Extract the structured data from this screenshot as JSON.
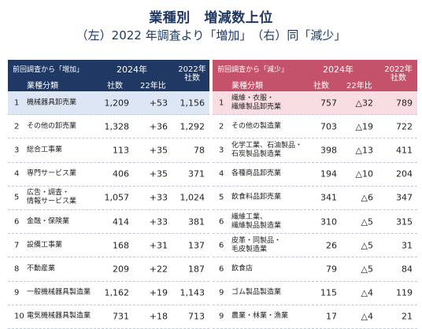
{
  "title": "業種別　増減数上位",
  "subtitle": "（左）2022 年調査より「増加」　（右）同「減少」",
  "left": {
    "caption": "前回調査から「増加」",
    "year_label": "2024年",
    "prev_label": "2022年 社数",
    "col_category": "業種分類",
    "col_count": "社数",
    "col_diff": "22年比",
    "rows": [
      {
        "rank": "1",
        "name": "機械器具卸売業",
        "count": "1,209",
        "diff": "+53",
        "prev": "1,156"
      },
      {
        "rank": "2",
        "name": "その他の卸売業",
        "count": "1,328",
        "diff": "+36",
        "prev": "1,292"
      },
      {
        "rank": "3",
        "name": "総合工事業",
        "count": "113",
        "diff": "+35",
        "prev": "78"
      },
      {
        "rank": "4",
        "name": "専門サービス業",
        "count": "406",
        "diff": "+35",
        "prev": "371"
      },
      {
        "rank": "5",
        "name": "広告・調査・\n情報サービス業",
        "count": "1,057",
        "diff": "+33",
        "prev": "1,024"
      },
      {
        "rank": "6",
        "name": "金融・保険業",
        "count": "414",
        "diff": "+33",
        "prev": "381"
      },
      {
        "rank": "7",
        "name": "設備工事業",
        "count": "168",
        "diff": "+31",
        "prev": "137"
      },
      {
        "rank": "8",
        "name": "不動産業",
        "count": "209",
        "diff": "+22",
        "prev": "187"
      },
      {
        "rank": "9",
        "name": "一般機械器具製造業",
        "count": "1,162",
        "diff": "+19",
        "prev": "1,143"
      },
      {
        "rank": "10",
        "name": "電気機械器具製造業",
        "count": "731",
        "diff": "+18",
        "prev": "713"
      }
    ]
  },
  "right": {
    "caption": "前回調査から「減少」",
    "year_label": "2024年",
    "prev_label": "2022年 社数",
    "col_category": "業種分類",
    "col_count": "社数",
    "col_diff": "22年比",
    "rows": [
      {
        "rank": "1",
        "name": "繊維・衣服・\n繊維製品卸売業",
        "count": "757",
        "diff": "△32",
        "prev": "789"
      },
      {
        "rank": "2",
        "name": "その他の製造業",
        "count": "703",
        "diff": "△19",
        "prev": "722"
      },
      {
        "rank": "3",
        "name": "化学工業、石油製品・\n石炭製品製造業",
        "count": "398",
        "diff": "△13",
        "prev": "411"
      },
      {
        "rank": "4",
        "name": "各種商品卸売業",
        "count": "194",
        "diff": "△10",
        "prev": "204"
      },
      {
        "rank": "5",
        "name": "飲食料品卸売業",
        "count": "341",
        "diff": "△6",
        "prev": "347"
      },
      {
        "rank": "6",
        "name": "繊維工業、\n繊維製品製造業",
        "count": "310",
        "diff": "△5",
        "prev": "315"
      },
      {
        "rank": "6",
        "name": "皮革・同製品・\n毛皮製造業",
        "count": "26",
        "diff": "△5",
        "prev": "31"
      },
      {
        "rank": "6",
        "name": "飲食店",
        "count": "79",
        "diff": "△5",
        "prev": "84"
      },
      {
        "rank": "9",
        "name": "ゴム製品製造業",
        "count": "115",
        "diff": "△4",
        "prev": "119"
      },
      {
        "rank": "9",
        "name": "農業・林業・漁業",
        "count": "17",
        "diff": "△4",
        "prev": "21"
      }
    ]
  }
}
